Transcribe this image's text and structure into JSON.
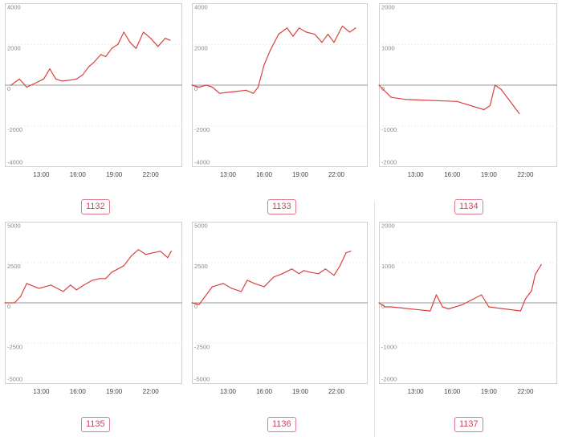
{
  "panels": [
    {
      "label": "1132",
      "ylim": [
        -4000,
        4000
      ],
      "yticks": [
        4000,
        2000,
        0,
        -2000,
        -4000
      ],
      "ytick_labels": [
        "4000",
        "2000",
        "0",
        "-2000",
        "-4000"
      ],
      "xticks": [
        13,
        16,
        19,
        22
      ],
      "xtick_labels": [
        "13:00",
        "16:00",
        "19:00",
        "22:00"
      ],
      "x": [
        10.5,
        11.2,
        11.8,
        12.5,
        13.2,
        13.7,
        14.2,
        14.7,
        15.4,
        15.9,
        16.4,
        16.9,
        17.3,
        17.9,
        18.3,
        18.8,
        19.3,
        19.8,
        20.3,
        20.8,
        21.4,
        22.0,
        22.6,
        23.2,
        23.6
      ],
      "y": [
        0,
        300,
        -100,
        100,
        300,
        800,
        300,
        200,
        250,
        300,
        500,
        900,
        1100,
        1500,
        1400,
        1800,
        2000,
        2600,
        2100,
        1800,
        2600,
        2300,
        1900,
        2300,
        2200
      ]
    },
    {
      "label": "1133",
      "ylim": [
        -4000,
        4000
      ],
      "yticks": [
        4000,
        2000,
        0,
        -2000,
        -4000
      ],
      "ytick_labels": [
        "4000",
        "2000",
        "0",
        "-2000",
        "-4000"
      ],
      "xticks": [
        13,
        16,
        19,
        22
      ],
      "xtick_labels": [
        "13:00",
        "16:00",
        "19:00",
        "22:00"
      ],
      "x": [
        10.0,
        10.6,
        11.2,
        11.7,
        12.3,
        13.0,
        13.8,
        14.5,
        15.1,
        15.5,
        16.0,
        16.5,
        17.2,
        17.9,
        18.4,
        18.9,
        19.5,
        20.2,
        20.8,
        21.3,
        21.8,
        22.5,
        23.1,
        23.6
      ],
      "y": [
        0,
        -100,
        0,
        -100,
        -400,
        -350,
        -300,
        -250,
        -400,
        -100,
        1000,
        1700,
        2500,
        2800,
        2400,
        2800,
        2600,
        2500,
        2100,
        2500,
        2100,
        2900,
        2600,
        2800
      ]
    },
    {
      "label": "1134",
      "ylim": [
        -2000,
        2000
      ],
      "yticks": [
        2000,
        1000,
        0,
        -1000,
        -2000
      ],
      "ytick_labels": [
        "2000",
        "1000",
        "0",
        "-1000",
        "-2000"
      ],
      "xticks": [
        13,
        16,
        19,
        22
      ],
      "xtick_labels": [
        "13:00",
        "16:00",
        "19:00",
        "22:00"
      ],
      "x": [
        10.0,
        11.0,
        12.2,
        16.4,
        18.6,
        19.1,
        19.5,
        20.0,
        21.5
      ],
      "y": [
        0,
        -300,
        -350,
        -400,
        -600,
        -500,
        0,
        -100,
        -700
      ]
    },
    {
      "label": "1135",
      "ylim": [
        -5000,
        5000
      ],
      "yticks": [
        5000,
        2500,
        0,
        -2500,
        -5000
      ],
      "ytick_labels": [
        "5000",
        "2500",
        "0",
        "-2500",
        "-5000"
      ],
      "xticks": [
        13,
        16,
        19,
        22
      ],
      "xtick_labels": [
        "13:00",
        "16:00",
        "19:00",
        "22:00"
      ],
      "x": [
        10.0,
        10.8,
        11.3,
        11.8,
        12.8,
        13.8,
        14.8,
        15.4,
        15.9,
        16.5,
        17.2,
        17.8,
        18.3,
        18.8,
        19.3,
        19.8,
        20.4,
        21.0,
        21.6,
        22.2,
        22.8,
        23.4,
        23.7
      ],
      "y": [
        0,
        0,
        400,
        1200,
        900,
        1100,
        700,
        1100,
        800,
        1100,
        1400,
        1500,
        1500,
        1900,
        2100,
        2300,
        2900,
        3300,
        3000,
        3100,
        3200,
        2800,
        3200
      ]
    },
    {
      "label": "1136",
      "ylim": [
        -5000,
        5000
      ],
      "yticks": [
        5000,
        2500,
        0,
        -2500,
        -5000
      ],
      "ytick_labels": [
        "5000",
        "2500",
        "0",
        "-2500",
        "-5000"
      ],
      "xticks": [
        13,
        16,
        19,
        22
      ],
      "xtick_labels": [
        "13:00",
        "16:00",
        "19:00",
        "22:00"
      ],
      "x": [
        10.0,
        10.6,
        11.1,
        11.7,
        12.6,
        13.3,
        14.1,
        14.6,
        15.2,
        16.0,
        16.8,
        17.5,
        18.3,
        18.9,
        19.3,
        19.8,
        20.5,
        21.1,
        21.8,
        22.3,
        22.8,
        23.2
      ],
      "y": [
        0,
        -100,
        400,
        1000,
        1200,
        900,
        700,
        1400,
        1200,
        1000,
        1600,
        1800,
        2100,
        1800,
        2000,
        1900,
        1800,
        2100,
        1700,
        2300,
        3100,
        3200
      ]
    },
    {
      "label": "1137",
      "ylim": [
        -2000,
        2000
      ],
      "yticks": [
        2000,
        1000,
        0,
        -1000,
        -2000
      ],
      "ytick_labels": [
        "2000",
        "1000",
        "0",
        "-1000",
        "-2000"
      ],
      "xticks": [
        13,
        16,
        19,
        22
      ],
      "xtick_labels": [
        "13:00",
        "16:00",
        "19:00",
        "22:00"
      ],
      "x": [
        10.0,
        10.5,
        11.0,
        14.2,
        14.7,
        15.2,
        15.7,
        16.8,
        18.4,
        19.0,
        21.6,
        22.0,
        22.5,
        22.8,
        23.3
      ],
      "y": [
        0,
        -100,
        -100,
        -200,
        200,
        -100,
        -150,
        -50,
        200,
        -100,
        -200,
        100,
        300,
        700,
        950
      ]
    }
  ]
}
